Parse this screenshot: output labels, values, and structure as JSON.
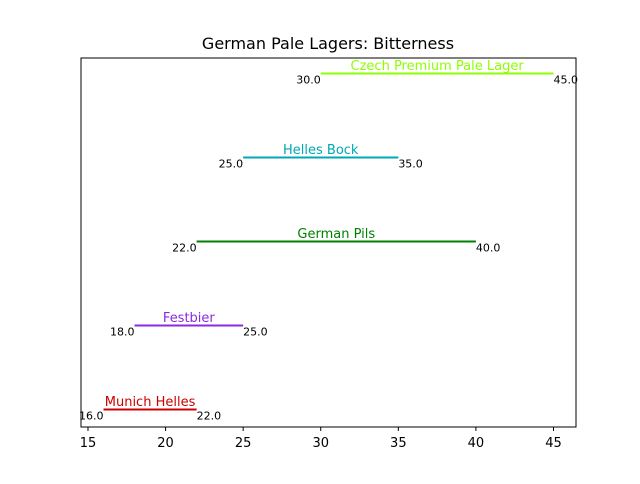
{
  "chart_data": {
    "type": "range-bar",
    "title": "German Pale Lagers: Bitterness",
    "xlabel": "",
    "ylabel": "",
    "xlim": [
      14.55,
      46.45
    ],
    "xticks": [
      15,
      20,
      25,
      30,
      35,
      40,
      45
    ],
    "grid": false,
    "legend": "none",
    "series": [
      {
        "name": "Munich Helles",
        "min": 16.0,
        "max": 22.0,
        "min_label": "16.0",
        "max_label": "22.0",
        "color": "#cc0000"
      },
      {
        "name": "Festbier",
        "min": 18.0,
        "max": 25.0,
        "min_label": "18.0",
        "max_label": "25.0",
        "color": "#8a2be2"
      },
      {
        "name": "German Pils",
        "min": 22.0,
        "max": 40.0,
        "min_label": "22.0",
        "max_label": "40.0",
        "color": "#008000"
      },
      {
        "name": "Helles Bock",
        "min": 25.0,
        "max": 35.0,
        "min_label": "25.0",
        "max_label": "35.0",
        "color": "#00a8b3"
      },
      {
        "name": "Czech Premium Pale Lager",
        "min": 30.0,
        "max": 45.0,
        "min_label": "30.0",
        "max_label": "45.0",
        "color": "#8cff00"
      }
    ]
  }
}
